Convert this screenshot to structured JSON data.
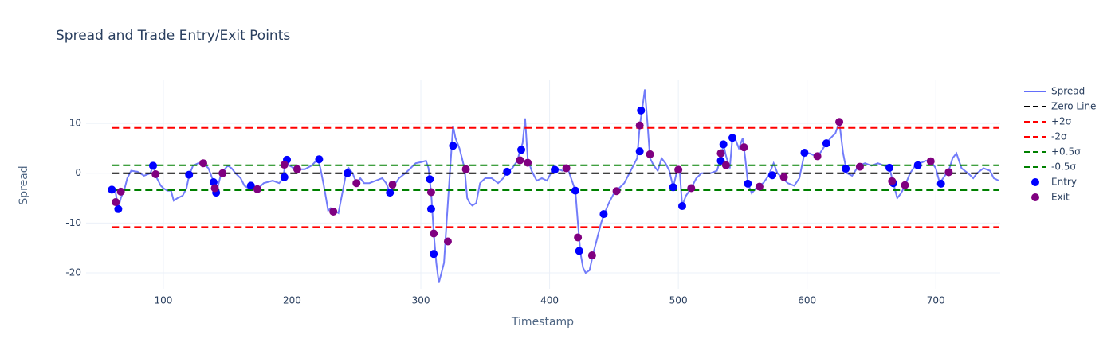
{
  "chart_data": {
    "type": "line",
    "title": "Spread and Trade Entry/Exit Points",
    "x_label": "Timestamp",
    "y_label": "Spread",
    "xlim": [
      40,
      750
    ],
    "ylim": [
      -23.2,
      18.8
    ],
    "xticks": [
      100,
      200,
      300,
      400,
      500,
      600,
      700
    ],
    "yticks": [
      -20,
      -10,
      0,
      10
    ],
    "grid": true,
    "legend": "right",
    "series": [
      {
        "name": "Spread",
        "color": "#636efa",
        "mode": "lines",
        "dash": "solid",
        "x": [
          60,
          63,
          65,
          67,
          70,
          72,
          75,
          80,
          85,
          90,
          92,
          95,
          98,
          100,
          103,
          106,
          108,
          111,
          115,
          118,
          120,
          123,
          127,
          131,
          135,
          138,
          140,
          142,
          145,
          150,
          153,
          156,
          160,
          163,
          166,
          170,
          173,
          178,
          185,
          190,
          193,
          195,
          198,
          202,
          205,
          210,
          215,
          220,
          222,
          225,
          228,
          230,
          233,
          236,
          239,
          242,
          244,
          247,
          250,
          253,
          256,
          260,
          265,
          270,
          273,
          276,
          279,
          283,
          288,
          292,
          296,
          300,
          304,
          306,
          308,
          310,
          312,
          314,
          316,
          318,
          320,
          322,
          324,
          325,
          327,
          330,
          332,
          334,
          336,
          338,
          340,
          343,
          346,
          350,
          355,
          360,
          364,
          367,
          371,
          375,
          377,
          379,
          381,
          383,
          386,
          390,
          394,
          398,
          402,
          405,
          410,
          414,
          418,
          420,
          422,
          424,
          426,
          428,
          431,
          434,
          437,
          440,
          442,
          446,
          450,
          454,
          458,
          462,
          465,
          468,
          470,
          472,
          474,
          476,
          478,
          481,
          484,
          487,
          490,
          493,
          496,
          499,
          501,
          503,
          506,
          510,
          514,
          518,
          525,
          530,
          533,
          535,
          537,
          540,
          542,
          544,
          547,
          550,
          552,
          554,
          557,
          562,
          566,
          570,
          574,
          577,
          581,
          585,
          590,
          594,
          598,
          602,
          606,
          610,
          615,
          618,
          622,
          625,
          628,
          631,
          635,
          640,
          645,
          650,
          655,
          660,
          664,
          667,
          670,
          673,
          676,
          680,
          684,
          688,
          692,
          696,
          700,
          703,
          707,
          710,
          713,
          716,
          720,
          725,
          729,
          732,
          737,
          742,
          745,
          749
        ],
        "values": [
          -3.5,
          -4,
          -7,
          -5,
          -3,
          -1,
          0.5,
          0.3,
          -0.5,
          0,
          1.5,
          -1,
          -2.5,
          -3,
          -3.5,
          -3.5,
          -5.5,
          -5,
          -4.5,
          -3,
          -0.5,
          1.5,
          2,
          2,
          1,
          -1,
          -3.5,
          -3,
          0,
          1.5,
          1,
          0,
          -1,
          -2.5,
          -3,
          -3,
          -3.2,
          -2,
          -1.5,
          -2,
          -1,
          2.5,
          1.5,
          1,
          0.8,
          0.8,
          1.5,
          2.8,
          1,
          -3,
          -7.5,
          -7,
          -7.5,
          -8,
          -4,
          0,
          1,
          0,
          -2,
          -1,
          -2,
          -2,
          -1.5,
          -1,
          -2,
          -3.8,
          -2.5,
          -1,
          0,
          1,
          2,
          2.2,
          2.5,
          1,
          -4,
          -12,
          -18,
          -22,
          -20,
          -18,
          -10,
          -2,
          5.5,
          9.5,
          7,
          5,
          3,
          0.8,
          -5,
          -6,
          -6.5,
          -6,
          -2,
          -1,
          -1,
          -2,
          -1,
          0.3,
          1,
          2.5,
          4.5,
          6,
          11,
          3,
          0.5,
          -1.5,
          -1,
          -1.5,
          0.5,
          1,
          0.5,
          1,
          -2,
          -3.5,
          -10,
          -16,
          -19,
          -20,
          -19.5,
          -16,
          -13,
          -10,
          -8.5,
          -6,
          -4,
          -3,
          -2,
          0,
          1.5,
          3,
          9.5,
          13,
          16.8,
          10,
          3,
          1.5,
          0.5,
          3,
          2,
          0.5,
          -2.8,
          0.5,
          0.7,
          -6.5,
          -4.5,
          -3,
          -1,
          0,
          0,
          0.5,
          3,
          5.8,
          3.5,
          1,
          7.2,
          7,
          5,
          7,
          3,
          -2,
          -4,
          -2.5,
          -2,
          -0.5,
          2,
          0,
          -1,
          -2,
          -2.5,
          -1,
          4,
          4,
          3.5,
          4,
          6,
          7,
          8,
          10.3,
          4,
          0,
          -0.5,
          1.5,
          2,
          1.5,
          2,
          1.5,
          1,
          -2,
          -5,
          -4,
          -2.5,
          0,
          1.5,
          2,
          2.5,
          2.5,
          1,
          -2,
          -0.5,
          0.5,
          3,
          4,
          1,
          0,
          -1,
          0,
          1,
          0.5,
          -1,
          -1.5
        ]
      },
      {
        "name": "Zero Line",
        "color": "#000000",
        "mode": "lines",
        "dash": "dash",
        "x": [
          60,
          749
        ],
        "values": [
          0,
          0
        ]
      },
      {
        "name": "+2σ",
        "color": "#ff0000",
        "mode": "lines",
        "dash": "dash",
        "x": [
          60,
          749
        ],
        "values": [
          9.1,
          9.1
        ]
      },
      {
        "name": "-2σ",
        "color": "#ff0000",
        "mode": "lines",
        "dash": "dash",
        "x": [
          60,
          749
        ],
        "values": [
          -10.8,
          -10.8
        ]
      },
      {
        "name": "+0.5σ",
        "color": "#008000",
        "mode": "lines",
        "dash": "dash",
        "x": [
          60,
          749
        ],
        "values": [
          1.6,
          1.6
        ]
      },
      {
        "name": "-0.5σ",
        "color": "#008000",
        "mode": "lines",
        "dash": "dash",
        "x": [
          60,
          749
        ],
        "values": [
          -3.4,
          -3.4
        ]
      },
      {
        "name": "Entry",
        "color": "#0000ff",
        "mode": "markers",
        "x": [
          60,
          65,
          92,
          120,
          139,
          141,
          168,
          194,
          196,
          221,
          243,
          276,
          307,
          308,
          310,
          325,
          367,
          378,
          404,
          420,
          423,
          442,
          470,
          471,
          496,
          503,
          533,
          535,
          542,
          554,
          573,
          598,
          615,
          630,
          664,
          667,
          686,
          704
        ],
        "values": [
          -3.3,
          -7.2,
          1.5,
          -0.3,
          -1.8,
          -3.9,
          -2.5,
          -0.8,
          2.7,
          2.8,
          0,
          -3.9,
          -1.2,
          -7.2,
          -16.2,
          5.5,
          0.3,
          4.7,
          0.7,
          -3.5,
          -15.6,
          -8.2,
          4.4,
          12.6,
          -2.8,
          -6.6,
          2.5,
          5.8,
          7.1,
          -2.1,
          -0.4,
          4.1,
          6,
          0.9,
          1.1,
          -2,
          1.6,
          -2.1
        ]
      },
      {
        "name": "Exit",
        "color": "#800080",
        "mode": "markers",
        "x": [
          63,
          67,
          94,
          131,
          140,
          146,
          173,
          194,
          204,
          232,
          250,
          278,
          308,
          310,
          321,
          335,
          377,
          383,
          413,
          422,
          433,
          452,
          470,
          478,
          500,
          510,
          533,
          537,
          551,
          563,
          582,
          608,
          625,
          641,
          666,
          676,
          696,
          710
        ],
        "values": [
          -5.8,
          -3.7,
          -0.2,
          2,
          -3,
          0,
          -3.2,
          1.7,
          0.8,
          -7.7,
          -2,
          -2.3,
          -3.8,
          -12.1,
          -13.7,
          0.8,
          2.6,
          2.1,
          1,
          -12.9,
          -16.5,
          -3.6,
          9.6,
          3.8,
          0.7,
          -3,
          4,
          1.6,
          5.2,
          -2.7,
          -0.8,
          3.4,
          10.3,
          1.3,
          -1.6,
          -2.4,
          2.4,
          0.2
        ]
      }
    ]
  }
}
